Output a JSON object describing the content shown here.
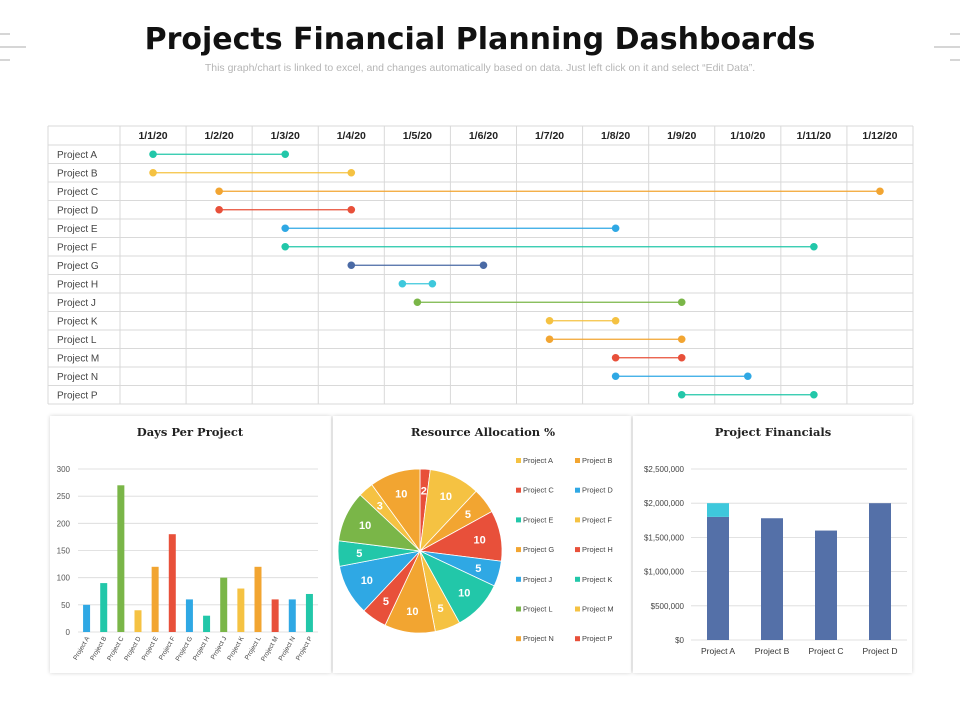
{
  "header": {
    "title": "Projects Financial Planning Dashboards",
    "subtitle": "This graph/chart is linked to excel, and changes automatically based on data. Just left click on it and select “Edit Data”."
  },
  "colors": {
    "teal": "#22c7a9",
    "yellow": "#f5c242",
    "orange": "#f2a531",
    "red": "#e8503a",
    "blue": "#2fa8e4",
    "green": "#7ab648",
    "navy": "#4a6aa5",
    "cyan": "#3ec8dc",
    "barblue": "#5470a8",
    "grid": "#d9d9d9"
  },
  "chart_data": [
    {
      "type": "gantt",
      "x_ticks": [
        "1/1/20",
        "1/2/20",
        "1/3/20",
        "1/4/20",
        "1/5/20",
        "1/6/20",
        "1/7/20",
        "1/8/20",
        "1/9/20",
        "1/10/20",
        "1/11/20",
        "1/12/20"
      ],
      "tasks": [
        {
          "label": "Project A",
          "start": "1/1/20",
          "end": "1/3/20",
          "color": "#22c7a9"
        },
        {
          "label": "Project B",
          "start": "1/1/20",
          "end": "1/4/20",
          "color": "#f5c242"
        },
        {
          "label": "Project C",
          "start": "1/2/20",
          "end": "1/12/20",
          "color": "#f2a531"
        },
        {
          "label": "Project D",
          "start": "1/2/20",
          "end": "1/4/20",
          "color": "#e8503a"
        },
        {
          "label": "Project E",
          "start": "1/3/20",
          "end": "1/8/20",
          "color": "#2fa8e4"
        },
        {
          "label": "Project F",
          "start": "1/3/20",
          "end": "1/11/20",
          "color": "#22c7a9"
        },
        {
          "label": "Project G",
          "start": "1/4/20",
          "end": "1/6/20",
          "color": "#4a6aa5"
        },
        {
          "label": "Project H",
          "start": "1/5/20",
          "end": "1/5/20",
          "color": "#3ec8dc"
        },
        {
          "label": "Project J",
          "start": "1/5/20",
          "end": "1/9/20",
          "color": "#7ab648"
        },
        {
          "label": "Project K",
          "start": "1/7/20",
          "end": "1/8/20",
          "color": "#f5c242"
        },
        {
          "label": "Project L",
          "start": "1/7/20",
          "end": "1/9/20",
          "color": "#f2a531"
        },
        {
          "label": "Project M",
          "start": "1/8/20",
          "end": "1/9/20",
          "color": "#e8503a"
        },
        {
          "label": "Project N",
          "start": "1/8/20",
          "end": "1/10/20",
          "color": "#2fa8e4"
        },
        {
          "label": "Project P",
          "start": "1/9/20",
          "end": "1/11/20",
          "color": "#22c7a9"
        }
      ]
    },
    {
      "type": "bar",
      "title": "Days Per Project",
      "categories": [
        "Project A",
        "Project B",
        "Project C",
        "Project D",
        "Project E",
        "Project F",
        "Project G",
        "Project H",
        "Project J",
        "Project K",
        "Project L",
        "Project M",
        "Project N",
        "Project P"
      ],
      "values": [
        50,
        90,
        270,
        40,
        120,
        180,
        60,
        30,
        100,
        80,
        120,
        60,
        60,
        70
      ],
      "colors": [
        "#2fa8e4",
        "#22c7a9",
        "#7ab648",
        "#f5c242",
        "#f2a531",
        "#e8503a",
        "#2fa8e4",
        "#22c7a9",
        "#7ab648",
        "#f5c242",
        "#f2a531",
        "#e8503a",
        "#2fa8e4",
        "#22c7a9"
      ],
      "ylim": [
        0,
        300
      ],
      "yticks": [
        "0",
        "50",
        "100",
        "150",
        "200",
        "250",
        "300"
      ]
    },
    {
      "type": "pie",
      "title": "Resource Allocation %",
      "legend_position": "right",
      "slices": [
        {
          "label": "Project A",
          "value": 2,
          "color": "#e8503a"
        },
        {
          "label": "Project B",
          "value": 10,
          "color": "#f5c242"
        },
        {
          "label": "Project C",
          "value": 5,
          "color": "#f2a531"
        },
        {
          "label": "Project D",
          "value": 10,
          "color": "#e8503a"
        },
        {
          "label": "Project E",
          "value": 5,
          "color": "#2fa8e4"
        },
        {
          "label": "Project F",
          "value": 10,
          "color": "#22c7a9"
        },
        {
          "label": "Project G",
          "value": 5,
          "color": "#f5c242"
        },
        {
          "label": "Project H",
          "value": 10,
          "color": "#f2a531"
        },
        {
          "label": "Project J",
          "value": 5,
          "color": "#e8503a"
        },
        {
          "label": "Project K",
          "value": 10,
          "color": "#2fa8e4"
        },
        {
          "label": "Project L",
          "value": 5,
          "color": "#22c7a9"
        },
        {
          "label": "Project M",
          "value": 10,
          "color": "#7ab648"
        },
        {
          "label": "Project N",
          "value": 3,
          "color": "#f5c242"
        },
        {
          "label": "Project P",
          "value": 10,
          "color": "#f2a531"
        }
      ],
      "legend": [
        {
          "label": "Project A",
          "color": "#f5c242"
        },
        {
          "label": "Project B",
          "color": "#f2a531"
        },
        {
          "label": "Project C",
          "color": "#e8503a"
        },
        {
          "label": "Project D",
          "color": "#2fa8e4"
        },
        {
          "label": "Project E",
          "color": "#22c7a9"
        },
        {
          "label": "Project F",
          "color": "#f5c242"
        },
        {
          "label": "Project G",
          "color": "#f2a531"
        },
        {
          "label": "Project H",
          "color": "#e8503a"
        },
        {
          "label": "Project J",
          "color": "#2fa8e4"
        },
        {
          "label": "Project K",
          "color": "#22c7a9"
        },
        {
          "label": "Project L",
          "color": "#7ab648"
        },
        {
          "label": "Project M",
          "color": "#f5c242"
        },
        {
          "label": "Project N",
          "color": "#f2a531"
        },
        {
          "label": "Project P",
          "color": "#e8503a"
        }
      ]
    },
    {
      "type": "bar",
      "stacked": true,
      "title": "Project Financials",
      "categories": [
        "Project A",
        "Project B",
        "Project C",
        "Project D"
      ],
      "series": [
        {
          "values": [
            1800000,
            1780000,
            1600000,
            2000000
          ],
          "color": "#5470a8"
        },
        {
          "values": [
            200000,
            0,
            0,
            0
          ],
          "color": "#3ec8dc"
        }
      ],
      "ylim": [
        0,
        2500000
      ],
      "yticks": [
        "$0",
        "$500,000",
        "$1,000,000",
        "$1,500,000",
        "$2,000,000",
        "$2,500,000"
      ]
    }
  ]
}
